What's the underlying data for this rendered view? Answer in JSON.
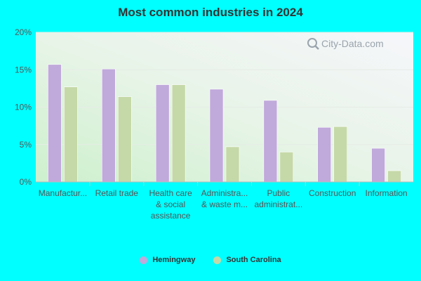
{
  "chart_data": {
    "type": "bar",
    "title": "Most common industries in 2024",
    "categories": [
      [
        "Manufactur..."
      ],
      [
        "Retail trade"
      ],
      [
        "Health care",
        "& social",
        "assistance"
      ],
      [
        "Administra...",
        "& waste m..."
      ],
      [
        "Public",
        "administrat..."
      ],
      [
        "Construction"
      ],
      [
        "Information"
      ]
    ],
    "series": [
      {
        "name": "Hemingway",
        "color": "#c0a9db",
        "values": [
          15.7,
          15.1,
          13.0,
          12.4,
          10.9,
          7.3,
          4.5
        ]
      },
      {
        "name": "South Carolina",
        "color": "#c5d9a8",
        "values": [
          12.7,
          11.4,
          13.0,
          4.7,
          4.0,
          7.4,
          1.5
        ]
      }
    ],
    "yticks": [
      "0%",
      "5%",
      "10%",
      "15%",
      "20%"
    ],
    "ytick_values": [
      0,
      5,
      10,
      15,
      20
    ],
    "ylim": [
      0,
      20
    ],
    "grid": true,
    "legend_position": "bottom"
  },
  "watermark": "City-Data.com"
}
